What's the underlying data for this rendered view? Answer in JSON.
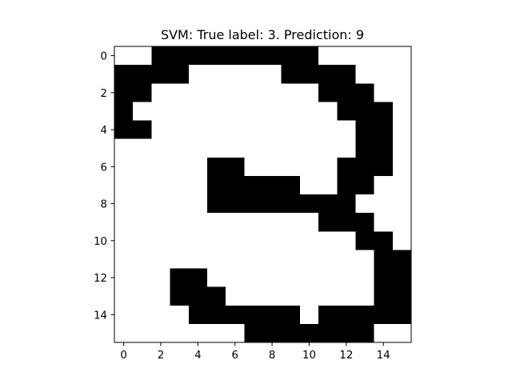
{
  "chart_data": {
    "type": "heatmap",
    "title": "SVM: True label: 3. Prediction: 9",
    "xlabel": "",
    "ylabel": "",
    "colormap": "binary",
    "colors": {
      "on": "#000000",
      "off": "#ffffff",
      "axis": "#000000"
    },
    "xlim": [
      -0.5,
      15.5
    ],
    "ylim": [
      15.5,
      -0.5
    ],
    "x_ticks": [
      0,
      2,
      4,
      6,
      8,
      10,
      12,
      14
    ],
    "y_ticks": [
      0,
      2,
      4,
      6,
      8,
      10,
      12,
      14
    ],
    "x_tick_labels": [
      "0",
      "2",
      "4",
      "6",
      "8",
      "10",
      "12",
      "14"
    ],
    "y_tick_labels": [
      "0",
      "2",
      "4",
      "6",
      "8",
      "10",
      "12",
      "14"
    ],
    "grid": false,
    "pixels": [
      [
        0,
        0,
        1,
        1,
        1,
        1,
        1,
        1,
        1,
        1,
        1,
        0,
        0,
        0,
        0,
        0
      ],
      [
        1,
        1,
        1,
        1,
        0,
        0,
        0,
        0,
        0,
        1,
        1,
        1,
        1,
        0,
        0,
        0
      ],
      [
        1,
        1,
        0,
        0,
        0,
        0,
        0,
        0,
        0,
        0,
        0,
        1,
        1,
        1,
        0,
        0
      ],
      [
        1,
        0,
        0,
        0,
        0,
        0,
        0,
        0,
        0,
        0,
        0,
        0,
        1,
        1,
        1,
        0
      ],
      [
        1,
        1,
        0,
        0,
        0,
        0,
        0,
        0,
        0,
        0,
        0,
        0,
        0,
        1,
        1,
        0
      ],
      [
        0,
        0,
        0,
        0,
        0,
        0,
        0,
        0,
        0,
        0,
        0,
        0,
        0,
        1,
        1,
        0
      ],
      [
        0,
        0,
        0,
        0,
        0,
        1,
        1,
        0,
        0,
        0,
        0,
        0,
        1,
        1,
        1,
        0
      ],
      [
        0,
        0,
        0,
        0,
        0,
        1,
        1,
        1,
        1,
        1,
        0,
        0,
        1,
        1,
        0,
        0
      ],
      [
        0,
        0,
        0,
        0,
        0,
        1,
        1,
        1,
        1,
        1,
        1,
        1,
        1,
        0,
        0,
        0
      ],
      [
        0,
        0,
        0,
        0,
        0,
        0,
        0,
        0,
        0,
        0,
        0,
        1,
        1,
        1,
        0,
        0
      ],
      [
        0,
        0,
        0,
        0,
        0,
        0,
        0,
        0,
        0,
        0,
        0,
        0,
        0,
        1,
        1,
        0
      ],
      [
        0,
        0,
        0,
        0,
        0,
        0,
        0,
        0,
        0,
        0,
        0,
        0,
        0,
        0,
        1,
        1
      ],
      [
        0,
        0,
        0,
        1,
        1,
        0,
        0,
        0,
        0,
        0,
        0,
        0,
        0,
        0,
        1,
        1
      ],
      [
        0,
        0,
        0,
        1,
        1,
        1,
        0,
        0,
        0,
        0,
        0,
        0,
        0,
        0,
        1,
        1
      ],
      [
        0,
        0,
        0,
        0,
        1,
        1,
        1,
        1,
        1,
        1,
        0,
        1,
        1,
        1,
        1,
        1
      ],
      [
        0,
        0,
        0,
        0,
        0,
        0,
        0,
        1,
        1,
        1,
        1,
        1,
        1,
        1,
        0,
        0
      ]
    ]
  }
}
